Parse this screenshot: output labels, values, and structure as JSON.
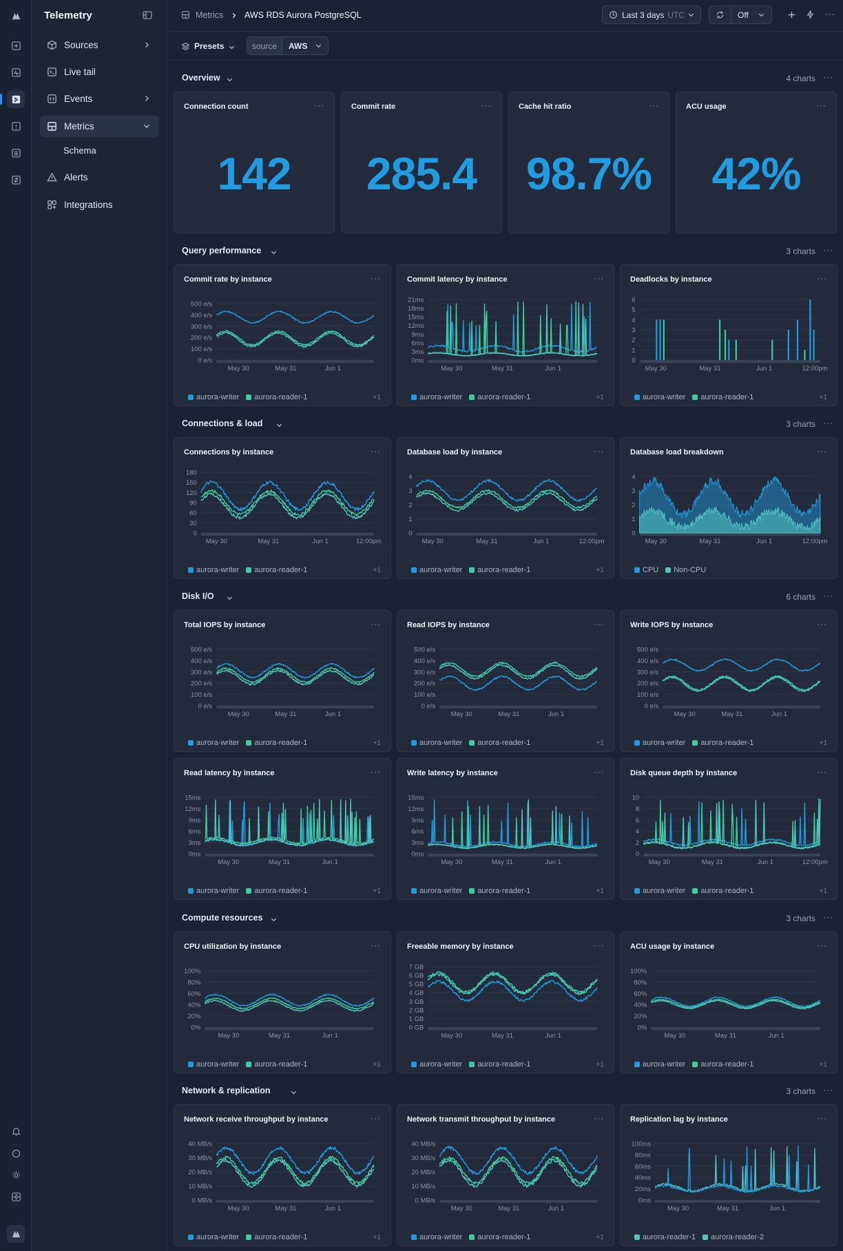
{
  "app": {
    "title": "Telemetry"
  },
  "sidebar": {
    "items": [
      {
        "label": "Sources",
        "icon": "cube-icon",
        "expandable": true
      },
      {
        "label": "Live tail",
        "icon": "terminal-icon",
        "expandable": false
      },
      {
        "label": "Events",
        "icon": "code-icon",
        "expandable": true
      },
      {
        "label": "Metrics",
        "icon": "grid-icon",
        "expandable": true,
        "active": true
      },
      {
        "label": "Schema",
        "icon": "",
        "expandable": false,
        "sub": true
      },
      {
        "label": "Alerts",
        "icon": "warning-icon",
        "expandable": false
      },
      {
        "label": "Integrations",
        "icon": "apps-icon",
        "expandable": false
      }
    ]
  },
  "breadcrumb": {
    "parent": "Metrics",
    "current": "AWS RDS Aurora PostgreSQL"
  },
  "topbar": {
    "time_range": "Last 3 days",
    "timezone": "UTC",
    "refresh": "Off"
  },
  "toolbar": {
    "presets": "Presets",
    "filter_key": "source",
    "filter_value": "AWS"
  },
  "colors": {
    "writer": "#1f9de0",
    "reader1": "#3ccf9b",
    "reader2": "#52c4c0",
    "accent": "#2f8fff"
  },
  "sections": [
    {
      "title": "Overview",
      "count": "4 charts"
    },
    {
      "title": "Query performance",
      "count": "3 charts"
    },
    {
      "title": "Connections & load",
      "count": "3 charts"
    },
    {
      "title": "Disk I/O",
      "count": "6 charts"
    },
    {
      "title": "Compute resources",
      "count": "3 charts"
    },
    {
      "title": "Network & replication",
      "count": "3 charts"
    }
  ],
  "stats": [
    {
      "title": "Connection count",
      "value": "142"
    },
    {
      "title": "Commit rate",
      "value": "285.4"
    },
    {
      "title": "Cache hit ratio",
      "value": "98.7%"
    },
    {
      "title": "ACU usage",
      "value": "42%"
    }
  ],
  "chart_data": [
    {
      "title": "Commit rate by instance",
      "type": "line",
      "kind": "wave",
      "yticks": [
        "500 e/s",
        "400 e/s",
        "300 e/s",
        "200 e/s",
        "100 e/s",
        "0 e/s"
      ],
      "ymax": 500,
      "xticks": [
        "May 30",
        "May 31",
        "Jun 1"
      ],
      "series": [
        {
          "name": "aurora-writer",
          "base": 380,
          "amp": 50
        },
        {
          "name": "aurora-reader-1",
          "base": 195,
          "amp": 60
        },
        {
          "name": "",
          "base": 180,
          "amp": 60
        }
      ],
      "legend": [
        "aurora-writer",
        "aurora-reader-1"
      ],
      "more": "+1"
    },
    {
      "title": "Commit latency by instance",
      "type": "line",
      "kind": "spike",
      "yticks": [
        "21ms",
        "18ms",
        "15ms",
        "12ms",
        "9ms",
        "6ms",
        "3ms",
        "0ms"
      ],
      "ymax": 21,
      "xticks": [
        "May 30",
        "May 31",
        "Jun 1"
      ],
      "series": [
        {
          "name": "aurora-writer",
          "base": 4,
          "amp": 2
        },
        {
          "name": "aurora-reader-1",
          "base": 2,
          "amp": 1
        },
        {
          "name": "",
          "base": 2,
          "amp": 1
        }
      ],
      "legend": [
        "aurora-writer",
        "aurora-reader-1"
      ],
      "more": "+1"
    },
    {
      "title": "Deadlocks by instance",
      "type": "bar",
      "kind": "bars",
      "yticks": [
        "6",
        "5",
        "4",
        "3",
        "2",
        "1",
        "0"
      ],
      "ymax": 6,
      "xticks": [
        "May 30",
        "May 31",
        "Jun 1",
        "12:00pm"
      ],
      "series": [
        {
          "name": "aurora-writer",
          "base": 0,
          "amp": 0
        },
        {
          "name": "aurora-reader-1",
          "base": 0,
          "amp": 0
        }
      ],
      "legend": [
        "aurora-writer",
        "aurora-reader-1"
      ],
      "more": "+1"
    },
    {
      "title": "Connections by instance",
      "type": "line",
      "kind": "wave",
      "yticks": [
        "180",
        "150",
        "120",
        "90",
        "60",
        "30",
        "0"
      ],
      "ymax": 180,
      "xticks": [
        "May 30",
        "May 31",
        "Jun 1",
        "12:00pm"
      ],
      "series": [
        {
          "name": "aurora-writer",
          "base": 110,
          "amp": 40
        },
        {
          "name": "aurora-reader-1",
          "base": 90,
          "amp": 35
        },
        {
          "name": "",
          "base": 80,
          "amp": 35
        }
      ],
      "legend": [
        "aurora-writer",
        "aurora-reader-1"
      ],
      "more": "+1"
    },
    {
      "title": "Database load by instance",
      "type": "line",
      "kind": "wave",
      "yticks": [
        "4",
        "3",
        "2",
        "1",
        "0"
      ],
      "ymax": 4,
      "xticks": [
        "May 30",
        "May 31",
        "Jun 1",
        "12:00pm"
      ],
      "series": [
        {
          "name": "aurora-writer",
          "base": 3,
          "amp": 0.7
        },
        {
          "name": "aurora-reader-1",
          "base": 2.4,
          "amp": 0.6
        },
        {
          "name": "",
          "base": 2.2,
          "amp": 0.6
        }
      ],
      "legend": [
        "aurora-writer",
        "aurora-reader-1"
      ],
      "more": "+1"
    },
    {
      "title": "Database load breakdown",
      "type": "area",
      "kind": "area",
      "yticks": [
        "4",
        "3",
        "2",
        "1",
        "0"
      ],
      "ymax": 4,
      "xticks": [
        "May 30",
        "May 31",
        "Jun 1",
        "12:00pm"
      ],
      "series": [
        {
          "name": "CPU",
          "base": 2.5,
          "amp": 1.2
        },
        {
          "name": "Non-CPU",
          "base": 1,
          "amp": 0.6
        }
      ],
      "legend": [
        "CPU",
        "Non-CPU"
      ],
      "more": ""
    },
    {
      "title": "Total IOPS by instance",
      "type": "line",
      "kind": "wave",
      "yticks": [
        "500 e/s",
        "400 e/s",
        "300 e/s",
        "200 e/s",
        "100 e/s",
        "0 e/s"
      ],
      "ymax": 500,
      "xticks": [
        "May 30",
        "May 31",
        "Jun 1"
      ],
      "series": [
        {
          "name": "aurora-writer",
          "base": 310,
          "amp": 60
        },
        {
          "name": "aurora-reader-1",
          "base": 270,
          "amp": 60
        },
        {
          "name": "",
          "base": 250,
          "amp": 60
        }
      ],
      "legend": [
        "aurora-writer",
        "aurora-reader-1"
      ],
      "more": "+1"
    },
    {
      "title": "Read IOPS by instance",
      "type": "line",
      "kind": "wave",
      "yticks": [
        "500 e/s",
        "400 e/s",
        "300 e/s",
        "200 e/s",
        "100 e/s",
        "0 e/s"
      ],
      "ymax": 500,
      "xticks": [
        "May 30",
        "May 31",
        "Jun 1"
      ],
      "series": [
        {
          "name": "aurora-writer",
          "base": 200,
          "amp": 60
        },
        {
          "name": "aurora-reader-1",
          "base": 320,
          "amp": 60
        },
        {
          "name": "",
          "base": 300,
          "amp": 60
        }
      ],
      "legend": [
        "aurora-writer",
        "aurora-reader-1"
      ],
      "more": "+1"
    },
    {
      "title": "Write IOPS by instance",
      "type": "line",
      "kind": "wave",
      "yticks": [
        "500 e/s",
        "400 e/s",
        "300 e/s",
        "200 e/s",
        "100 e/s",
        "0 e/s"
      ],
      "ymax": 500,
      "xticks": [
        "May 30",
        "May 31",
        "Jun 1"
      ],
      "series": [
        {
          "name": "aurora-writer",
          "base": 360,
          "amp": 50
        },
        {
          "name": "aurora-reader-1",
          "base": 200,
          "amp": 60
        },
        {
          "name": "",
          "base": 190,
          "amp": 60
        }
      ],
      "legend": [
        "aurora-writer",
        "aurora-reader-1"
      ],
      "more": "+1"
    },
    {
      "title": "Read latency by instance",
      "type": "line",
      "kind": "spike",
      "yticks": [
        "15ms",
        "12ms",
        "9ms",
        "6ms",
        "3ms",
        "0ms"
      ],
      "ymax": 15,
      "xticks": [
        "May 30",
        "May 31",
        "Jun 1"
      ],
      "series": [
        {
          "name": "aurora-writer",
          "base": 3,
          "amp": 1.5
        },
        {
          "name": "aurora-reader-1",
          "base": 3.5,
          "amp": 1.5
        },
        {
          "name": "",
          "base": 3,
          "amp": 1.5
        }
      ],
      "legend": [
        "aurora-writer",
        "aurora-reader-1"
      ],
      "more": "+1"
    },
    {
      "title": "Write latency by instance",
      "type": "line",
      "kind": "spike",
      "yticks": [
        "15ms",
        "12ms",
        "9ms",
        "6ms",
        "3ms",
        "0ms"
      ],
      "ymax": 15,
      "xticks": [
        "May 30",
        "May 31",
        "Jun 1"
      ],
      "series": [
        {
          "name": "aurora-writer",
          "base": 2.5,
          "amp": 1.2
        },
        {
          "name": "aurora-reader-1",
          "base": 2,
          "amp": 1
        },
        {
          "name": "",
          "base": 2,
          "amp": 1
        }
      ],
      "legend": [
        "aurora-writer",
        "aurora-reader-1"
      ],
      "more": "+1"
    },
    {
      "title": "Disk queue depth by instance",
      "type": "line",
      "kind": "spike",
      "yticks": [
        "10",
        "8",
        "6",
        "4",
        "2",
        "0"
      ],
      "ymax": 10,
      "xticks": [
        "May 30",
        "May 31",
        "Jun 1",
        "12:00pm"
      ],
      "series": [
        {
          "name": "aurora-writer",
          "base": 2,
          "amp": 1
        },
        {
          "name": "aurora-reader-1",
          "base": 1.5,
          "amp": 1
        },
        {
          "name": "",
          "base": 1.5,
          "amp": 1
        }
      ],
      "legend": [
        "aurora-writer",
        "aurora-reader-1"
      ],
      "more": "+1"
    },
    {
      "title": "CPU utilization by instance",
      "type": "line",
      "kind": "wave",
      "yticks": [
        "100%",
        "80%",
        "60%",
        "40%",
        "20%",
        "0%"
      ],
      "ymax": 100,
      "xticks": [
        "May 30",
        "May 31",
        "Jun 1"
      ],
      "series": [
        {
          "name": "aurora-writer",
          "base": 48,
          "amp": 10
        },
        {
          "name": "aurora-reader-1",
          "base": 42,
          "amp": 9
        },
        {
          "name": "",
          "base": 38,
          "amp": 9
        }
      ],
      "legend": [
        "aurora-writer",
        "aurora-reader-1"
      ],
      "more": "+1"
    },
    {
      "title": "Freeable memory by instance",
      "type": "line",
      "kind": "wave",
      "yticks": [
        "7 GB",
        "6 GB",
        "5 GB",
        "4 GB",
        "3 GB",
        "2 GB",
        "1 GB",
        "0 GB"
      ],
      "ymax": 7,
      "xticks": [
        "May 30",
        "May 31",
        "Jun 1"
      ],
      "series": [
        {
          "name": "aurora-writer",
          "base": 4.2,
          "amp": 1.1
        },
        {
          "name": "aurora-reader-1",
          "base": 5.2,
          "amp": 1.1
        },
        {
          "name": "",
          "base": 5,
          "amp": 1.1
        }
      ],
      "legend": [
        "aurora-writer",
        "aurora-reader-1"
      ],
      "more": "+1"
    },
    {
      "title": "ACU usage by instance",
      "type": "line",
      "kind": "wave",
      "yticks": [
        "100%",
        "80%",
        "60%",
        "40%",
        "20%",
        "0%"
      ],
      "ymax": 100,
      "xticks": [
        "May 30",
        "May 31",
        "Jun 1"
      ],
      "series": [
        {
          "name": "aurora-writer",
          "base": 45,
          "amp": 8
        },
        {
          "name": "aurora-reader-1",
          "base": 42,
          "amp": 7
        },
        {
          "name": "",
          "base": 40,
          "amp": 7
        }
      ],
      "legend": [
        "aurora-writer",
        "aurora-reader-1"
      ],
      "more": "+1"
    },
    {
      "title": "Network receive throughput by instance",
      "type": "line",
      "kind": "wave",
      "yticks": [
        "40 MB/s",
        "30 MB/s",
        "20 MB/s",
        "10 MB/s",
        "0 MB/s"
      ],
      "ymax": 40,
      "xticks": [
        "May 30",
        "May 31",
        "Jun 1"
      ],
      "series": [
        {
          "name": "aurora-writer",
          "base": 28,
          "amp": 9
        },
        {
          "name": "aurora-reader-1",
          "base": 21,
          "amp": 9
        },
        {
          "name": "",
          "base": 19,
          "amp": 9
        }
      ],
      "legend": [
        "aurora-writer",
        "aurora-reader-1"
      ],
      "more": "+1"
    },
    {
      "title": "Network transmit throughput by instance",
      "type": "line",
      "kind": "wave",
      "yticks": [
        "40 MB/s",
        "30 MB/s",
        "20 MB/s",
        "10 MB/s",
        "0 MB/s"
      ],
      "ymax": 40,
      "xticks": [
        "May 30",
        "May 31",
        "Jun 1"
      ],
      "series": [
        {
          "name": "aurora-writer",
          "base": 28,
          "amp": 9
        },
        {
          "name": "aurora-reader-1",
          "base": 21,
          "amp": 9
        },
        {
          "name": "",
          "base": 19,
          "amp": 9
        }
      ],
      "legend": [
        "aurora-writer",
        "aurora-reader-1"
      ],
      "more": "+1"
    },
    {
      "title": "Replication lag by instance",
      "type": "line",
      "kind": "spike",
      "yticks": [
        "100ms",
        "80ms",
        "60ms",
        "40ms",
        "20ms",
        "0ms"
      ],
      "ymax": 100,
      "xticks": [
        "May 30",
        "May 31",
        "Jun 1"
      ],
      "series": [
        {
          "name": "aurora-reader-1",
          "base": 22,
          "amp": 12
        },
        {
          "name": "aurora-reader-2",
          "base": 20,
          "amp": 10
        }
      ],
      "legend": [
        "aurora-reader-1",
        "aurora-reader-2"
      ],
      "more": ""
    }
  ]
}
